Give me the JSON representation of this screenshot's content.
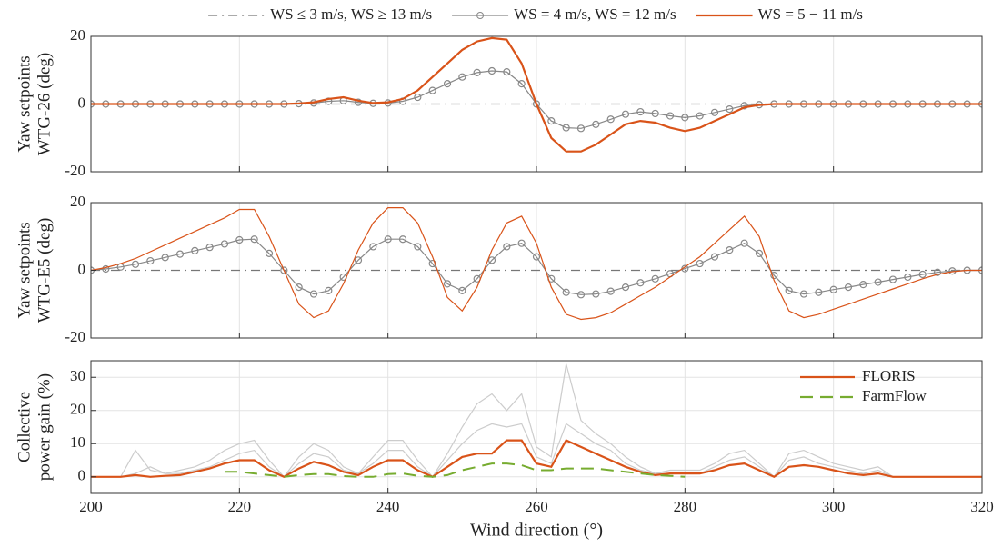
{
  "chart_data": [
    {
      "type": "line",
      "legend": "above",
      "ylabel": [
        "Yaw setpoints",
        "WTG-26 (deg)"
      ],
      "x": [
        200,
        202,
        204,
        206,
        208,
        210,
        212,
        214,
        216,
        218,
        220,
        222,
        224,
        226,
        228,
        230,
        232,
        234,
        236,
        238,
        240,
        242,
        244,
        246,
        248,
        250,
        252,
        254,
        256,
        258,
        260,
        262,
        264,
        266,
        268,
        270,
        272,
        274,
        276,
        278,
        280,
        282,
        284,
        286,
        288,
        290,
        292,
        294,
        296,
        298,
        300,
        302,
        304,
        306,
        308,
        310,
        312,
        314,
        316,
        318,
        320
      ],
      "xlim": [
        200,
        320
      ],
      "xticks": [
        200,
        220,
        240,
        260,
        280,
        300,
        320
      ],
      "ylim": [
        -20,
        20
      ],
      "yticks": [
        -20,
        0,
        20
      ],
      "grid": "x",
      "series": [
        {
          "name": "WS ≤ 3 m/s, WS ≥ 13 m/s",
          "color": "#777777",
          "style": "dashdot",
          "values": [
            0,
            0,
            0,
            0,
            0,
            0,
            0,
            0,
            0,
            0,
            0,
            0,
            0,
            0,
            0,
            0,
            0,
            0,
            0,
            0,
            0,
            0,
            0,
            0,
            0,
            0,
            0,
            0,
            0,
            0,
            0,
            0,
            0,
            0,
            0,
            0,
            0,
            0,
            0,
            0,
            0,
            0,
            0,
            0,
            0,
            0,
            0,
            0,
            0,
            0,
            0,
            0,
            0,
            0,
            0,
            0,
            0,
            0,
            0,
            0,
            0
          ]
        },
        {
          "name": "WS = 4 m/s, WS = 12 m/s",
          "color": "#888888",
          "style": "markers",
          "values": [
            0,
            0,
            0,
            0,
            0,
            0,
            0,
            0,
            0,
            0,
            0,
            0,
            0,
            0,
            0.1,
            0.3,
            0.8,
            1,
            0.5,
            0.2,
            0.3,
            0.8,
            2,
            4,
            6,
            8,
            9.3,
            9.8,
            9.5,
            6,
            0,
            -5,
            -7,
            -7.2,
            -6,
            -4.5,
            -3,
            -2.3,
            -2.8,
            -3.5,
            -4,
            -3.5,
            -2.5,
            -1.5,
            -0.5,
            -0.2,
            0,
            0,
            0,
            0,
            0,
            0,
            0,
            0,
            0,
            0,
            0,
            0,
            0,
            0,
            0
          ]
        },
        {
          "name": "WS = 5 − 11 m/s",
          "color": "#d95319",
          "style": "solid",
          "values": [
            0,
            0,
            0,
            0,
            0,
            0,
            0,
            0,
            0,
            0,
            0,
            0,
            0,
            0,
            0.2,
            0.5,
            1.5,
            2,
            1,
            0.3,
            0.5,
            1.5,
            4,
            8,
            12,
            16,
            18.5,
            19.5,
            19,
            12,
            0,
            -10,
            -14,
            -14,
            -12,
            -9,
            -6,
            -5,
            -5.5,
            -7,
            -8,
            -7,
            -5,
            -3,
            -1,
            -0.3,
            0,
            0,
            0,
            0,
            0,
            0,
            0,
            0,
            0,
            0,
            0,
            0,
            0,
            0,
            0
          ]
        }
      ]
    },
    {
      "type": "line",
      "ylabel": [
        "Yaw setpoints",
        "WTG-E5 (deg)"
      ],
      "x": [
        200,
        202,
        204,
        206,
        208,
        210,
        212,
        214,
        216,
        218,
        220,
        222,
        224,
        226,
        228,
        230,
        232,
        234,
        236,
        238,
        240,
        242,
        244,
        246,
        248,
        250,
        252,
        254,
        256,
        258,
        260,
        262,
        264,
        266,
        268,
        270,
        272,
        274,
        276,
        278,
        280,
        282,
        284,
        286,
        288,
        290,
        292,
        294,
        296,
        298,
        300,
        302,
        304,
        306,
        308,
        310,
        312,
        314,
        316,
        318,
        320
      ],
      "xlim": [
        200,
        320
      ],
      "xticks": [
        200,
        220,
        240,
        260,
        280,
        300,
        320
      ],
      "ylim": [
        -20,
        20
      ],
      "yticks": [
        -20,
        0,
        20
      ],
      "grid": "x",
      "series": [
        {
          "color": "#777777",
          "style": "dashdot",
          "values": [
            0,
            0,
            0,
            0,
            0,
            0,
            0,
            0,
            0,
            0,
            0,
            0,
            0,
            0,
            0,
            0,
            0,
            0,
            0,
            0,
            0,
            0,
            0,
            0,
            0,
            0,
            0,
            0,
            0,
            0,
            0,
            0,
            0,
            0,
            0,
            0,
            0,
            0,
            0,
            0,
            0,
            0,
            0,
            0,
            0,
            0,
            0,
            0,
            0,
            0,
            0,
            0,
            0,
            0,
            0,
            0,
            0,
            0,
            0,
            0,
            0
          ]
        },
        {
          "color": "#888888",
          "style": "markers",
          "values": [
            0,
            0.4,
            1,
            1.8,
            2.8,
            3.8,
            4.8,
            5.8,
            6.8,
            7.8,
            9,
            9.2,
            5,
            0,
            -5,
            -7,
            -6,
            -2,
            3,
            7,
            9.2,
            9.2,
            7,
            2,
            -4,
            -6,
            -2.5,
            3,
            7,
            8,
            4,
            -2.5,
            -6.5,
            -7.2,
            -7,
            -6.2,
            -5,
            -3.7,
            -2.5,
            -1,
            0.5,
            2,
            4,
            6,
            8,
            5,
            -1.5,
            -6,
            -7,
            -6.5,
            -5.7,
            -5,
            -4.2,
            -3.5,
            -2.7,
            -2,
            -1.2,
            -0.6,
            -0.2,
            0,
            0
          ]
        },
        {
          "color": "#d95319",
          "style": "solid",
          "values": [
            0,
            0.8,
            2,
            3.5,
            5.5,
            7.5,
            9.5,
            11.5,
            13.5,
            15.5,
            18,
            18,
            10,
            0,
            -10,
            -14,
            -12,
            -4,
            6,
            14,
            18.5,
            18.5,
            14,
            4,
            -8,
            -12,
            -5,
            6,
            14,
            16,
            8,
            -5,
            -13,
            -14.5,
            -14,
            -12.5,
            -10,
            -7.5,
            -5,
            -2,
            1,
            4,
            8,
            12,
            16,
            10,
            -3,
            -12,
            -14,
            -13,
            -11.5,
            -10,
            -8.5,
            -7,
            -5.5,
            -4,
            -2.5,
            -1.2,
            -0.4,
            0,
            0
          ]
        }
      ]
    },
    {
      "type": "line",
      "legend": "upper right",
      "ylabel": [
        "Collective",
        "power gain (%)"
      ],
      "xlabel": "Wind direction (°)",
      "x": [
        200,
        202,
        204,
        206,
        208,
        210,
        212,
        214,
        216,
        218,
        220,
        222,
        224,
        226,
        228,
        230,
        232,
        234,
        236,
        238,
        240,
        242,
        244,
        246,
        248,
        250,
        252,
        254,
        256,
        258,
        260,
        262,
        264,
        266,
        268,
        270,
        272,
        274,
        276,
        278,
        280,
        282,
        284,
        286,
        288,
        290,
        292,
        294,
        296,
        298,
        300,
        302,
        304,
        306,
        308,
        310,
        312,
        314,
        316,
        318,
        320
      ],
      "xlim": [
        200,
        320
      ],
      "xticks": [
        200,
        220,
        240,
        260,
        280,
        300,
        320
      ],
      "ylim": [
        -5,
        35
      ],
      "yticks": [
        0,
        10,
        20,
        30
      ],
      "grid": "both",
      "series": [
        {
          "color": "#cccccc",
          "style": "solid",
          "values": [
            0,
            0,
            0,
            8,
            2,
            1,
            2,
            3,
            5,
            8,
            10,
            11,
            5,
            0,
            6,
            10,
            8,
            3,
            1,
            6,
            11,
            11,
            5,
            0,
            7,
            15,
            22,
            25,
            20,
            25,
            9,
            6,
            34,
            17,
            13,
            10,
            6,
            3,
            1,
            2,
            2,
            2,
            4,
            7,
            8,
            4,
            0,
            7,
            8,
            6,
            4,
            3,
            2,
            3,
            0,
            0,
            0,
            0,
            0,
            0,
            0
          ]
        },
        {
          "color": "#cccccc",
          "style": "solid",
          "values": [
            0,
            0,
            0,
            1,
            3,
            1,
            1,
            2,
            3,
            5,
            7,
            8,
            3,
            0,
            4,
            7,
            6,
            2,
            1,
            4,
            8,
            8,
            3,
            0,
            5,
            10,
            14,
            16,
            15,
            16,
            6,
            4,
            16,
            13,
            10,
            8,
            4,
            2,
            1,
            1,
            1,
            1,
            3,
            5,
            6,
            3,
            0,
            5,
            6,
            4,
            3,
            2,
            1,
            2,
            0,
            0,
            0,
            0,
            0,
            0,
            0
          ]
        },
        {
          "name": "FLORIS",
          "color": "#d95319",
          "style": "solid",
          "values": [
            0,
            0,
            0,
            0.5,
            0,
            0.3,
            0.5,
            1.5,
            2.5,
            4,
            5,
            5,
            2,
            0,
            2.5,
            4.5,
            3.5,
            1.5,
            0.5,
            3,
            5,
            5,
            2,
            0,
            3,
            6,
            7,
            7,
            11,
            11,
            4,
            3,
            11,
            9,
            7,
            5,
            3,
            1.5,
            0.5,
            1,
            1,
            1,
            2,
            3.5,
            4,
            2,
            0,
            3,
            3.5,
            3,
            2,
            1,
            0.5,
            1,
            0,
            0,
            0,
            0,
            0,
            0,
            0
          ]
        },
        {
          "name": "FarmFlow",
          "color": "#77ac30",
          "style": "dashed",
          "values": [
            null,
            null,
            null,
            null,
            null,
            null,
            null,
            null,
            null,
            1.5,
            1.5,
            1,
            0.5,
            0,
            0.5,
            0.8,
            0.8,
            0.2,
            0,
            0,
            0.8,
            1,
            0.3,
            0,
            0.5,
            2,
            3,
            4,
            4,
            3.5,
            2,
            2,
            2.5,
            2.5,
            2.5,
            2,
            1.5,
            1,
            0.5,
            0.3,
            0,
            null,
            null,
            null,
            null,
            null,
            null,
            null,
            null,
            null,
            null,
            null,
            null,
            null,
            null,
            null,
            null,
            null,
            null,
            null,
            null
          ]
        }
      ]
    }
  ]
}
